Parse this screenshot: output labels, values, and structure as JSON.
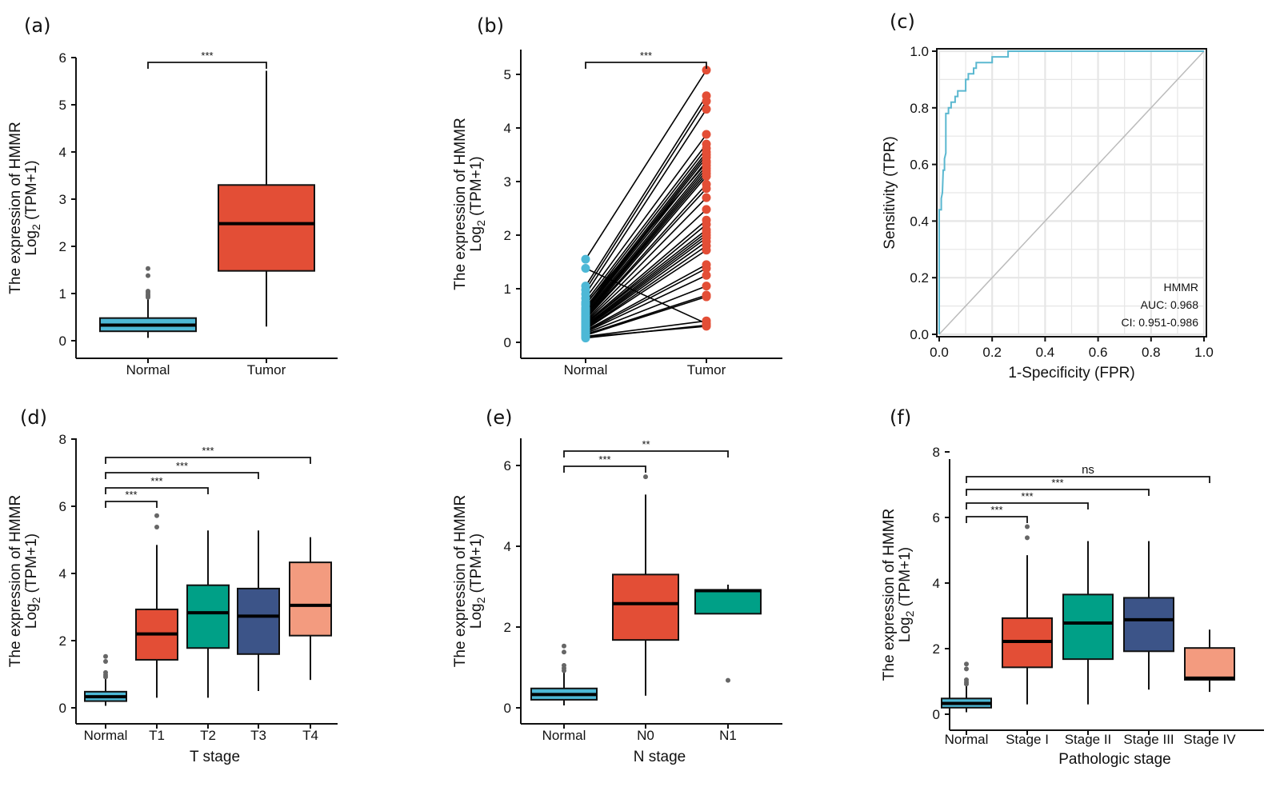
{
  "figure": {
    "gene": "HMMR",
    "colors": {
      "normal": "#4db8d6",
      "tumor": "#e34e36",
      "teal": "#00a087",
      "navy": "#3c5488",
      "salmon": "#f39b7f",
      "outlier": "#666666",
      "roc_line": "#5bb8d0",
      "diagonal": "#bbbbbb",
      "grid": "#e6e6e6"
    }
  },
  "chart_data": [
    {
      "id": "a",
      "panel_label": "(a)",
      "type": "box",
      "ylabel_line1": "The expression of HMMR",
      "ylabel_line2_prefix": "Log",
      "ylabel_line2_sub": "2",
      "ylabel_line2_suffix": " (TPM+1)",
      "xlabel": "",
      "ylim": [
        -0.2,
        6.3
      ],
      "yticks": [
        "0",
        "1",
        "2",
        "3",
        "4",
        "5",
        "6"
      ],
      "categories": [
        "Normal",
        "Tumor"
      ],
      "boxes": [
        {
          "name": "Normal",
          "color": "normal",
          "q1": 0.2,
          "median": 0.33,
          "q3": 0.48,
          "whisker_low": 0.06,
          "whisker_high": 0.9,
          "outliers": [
            0.92,
            0.95,
            0.98,
            1.02,
            1.05,
            1.38,
            1.53
          ]
        },
        {
          "name": "Tumor",
          "color": "tumor",
          "q1": 1.48,
          "median": 2.48,
          "q3": 3.3,
          "whisker_low": 0.3,
          "whisker_high": 5.72,
          "outliers": []
        }
      ],
      "comparisons": [
        {
          "from": "Normal",
          "to": "Tumor",
          "label": "***"
        }
      ]
    },
    {
      "id": "b",
      "panel_label": "(b)",
      "type": "paired-line",
      "ylabel_line1": "The expression of HMMR",
      "ylabel_line2_prefix": "Log",
      "ylabel_line2_sub": "2",
      "ylabel_line2_suffix": " (TPM+1)",
      "xlabel": "",
      "ylim": [
        -0.2,
        5.5
      ],
      "yticks": [
        "0",
        "1",
        "2",
        "3",
        "4",
        "5"
      ],
      "categories": [
        "Normal",
        "Tumor"
      ],
      "pairs": [
        [
          1.55,
          5.08
        ],
        [
          1.38,
          0.35
        ],
        [
          1.05,
          4.6
        ],
        [
          0.98,
          4.5
        ],
        [
          0.9,
          4.35
        ],
        [
          0.82,
          3.88
        ],
        [
          0.75,
          3.7
        ],
        [
          0.7,
          3.62
        ],
        [
          0.65,
          3.55
        ],
        [
          0.6,
          3.45
        ],
        [
          0.58,
          3.38
        ],
        [
          0.55,
          3.3
        ],
        [
          0.52,
          3.25
        ],
        [
          0.5,
          3.2
        ],
        [
          0.48,
          3.15
        ],
        [
          0.45,
          3.1
        ],
        [
          0.43,
          2.87
        ],
        [
          0.4,
          2.7
        ],
        [
          0.38,
          2.48
        ],
        [
          0.36,
          2.28
        ],
        [
          0.34,
          2.2
        ],
        [
          0.32,
          2.05
        ],
        [
          0.3,
          2.0
        ],
        [
          0.28,
          1.95
        ],
        [
          0.27,
          1.88
        ],
        [
          0.25,
          1.8
        ],
        [
          0.24,
          1.72
        ],
        [
          0.22,
          1.45
        ],
        [
          0.2,
          1.38
        ],
        [
          0.19,
          1.25
        ],
        [
          0.17,
          1.05
        ],
        [
          0.15,
          0.88
        ],
        [
          0.13,
          0.85
        ],
        [
          0.11,
          0.4
        ],
        [
          0.1,
          0.3
        ],
        [
          0.08,
          0.32
        ],
        [
          0.62,
          3.5
        ],
        [
          0.72,
          3.35
        ],
        [
          0.44,
          2.95
        ],
        [
          0.35,
          2.1
        ]
      ],
      "comparisons": [
        {
          "from": "Normal",
          "to": "Tumor",
          "label": "***"
        }
      ]
    },
    {
      "id": "c",
      "panel_label": "(c)",
      "type": "line",
      "subtype": "roc",
      "xlabel": "1-Specificity (FPR)",
      "ylabel": "Sensitivity (TPR)",
      "xlim": [
        0,
        1
      ],
      "ylim": [
        0,
        1
      ],
      "xticks": [
        "0.0",
        "0.2",
        "0.4",
        "0.6",
        "0.8",
        "1.0"
      ],
      "yticks": [
        "0.0",
        "0.2",
        "0.4",
        "0.6",
        "0.8",
        "1.0"
      ],
      "grid": true,
      "roc_points": [
        [
          0.0,
          0.0
        ],
        [
          0.0,
          0.44
        ],
        [
          0.008,
          0.44
        ],
        [
          0.008,
          0.48
        ],
        [
          0.012,
          0.5
        ],
        [
          0.015,
          0.58
        ],
        [
          0.02,
          0.58
        ],
        [
          0.02,
          0.62
        ],
        [
          0.025,
          0.64
        ],
        [
          0.025,
          0.78
        ],
        [
          0.035,
          0.78
        ],
        [
          0.035,
          0.8
        ],
        [
          0.045,
          0.8
        ],
        [
          0.045,
          0.82
        ],
        [
          0.06,
          0.82
        ],
        [
          0.06,
          0.84
        ],
        [
          0.07,
          0.84
        ],
        [
          0.07,
          0.86
        ],
        [
          0.1,
          0.86
        ],
        [
          0.1,
          0.9
        ],
        [
          0.11,
          0.9
        ],
        [
          0.11,
          0.92
        ],
        [
          0.13,
          0.92
        ],
        [
          0.13,
          0.94
        ],
        [
          0.14,
          0.94
        ],
        [
          0.14,
          0.96
        ],
        [
          0.2,
          0.96
        ],
        [
          0.2,
          0.98
        ],
        [
          0.26,
          0.98
        ],
        [
          0.26,
          1.0
        ],
        [
          1.0,
          1.0
        ]
      ],
      "annotation": {
        "name": "HMMR",
        "auc": "AUC: 0.968",
        "ci": "CI: 0.951-0.986",
        "placement": "bottom-right"
      }
    },
    {
      "id": "d",
      "panel_label": "(d)",
      "type": "box",
      "ylabel_line1": "The expression of HMMR",
      "ylabel_line2_prefix": "Log",
      "ylabel_line2_sub": "2",
      "ylabel_line2_suffix": " (TPM+1)",
      "xlabel": "T stage",
      "ylim": [
        -0.3,
        8.0
      ],
      "yticks": [
        "0",
        "2",
        "4",
        "6",
        "8"
      ],
      "ytick_values": [
        0,
        2,
        4,
        6,
        8
      ],
      "categories": [
        "Normal",
        "T1",
        "T2",
        "T3",
        "T4"
      ],
      "boxes": [
        {
          "name": "Normal",
          "color": "normal",
          "q1": 0.2,
          "median": 0.33,
          "q3": 0.48,
          "whisker_low": 0.06,
          "whisker_high": 0.9,
          "outliers": [
            0.92,
            0.98,
            1.05,
            1.38,
            1.53
          ]
        },
        {
          "name": "T1",
          "color": "tumor",
          "q1": 1.43,
          "median": 2.2,
          "q3": 2.93,
          "whisker_low": 0.3,
          "whisker_high": 4.85,
          "outliers": [
            5.38,
            5.72
          ]
        },
        {
          "name": "T2",
          "color": "teal",
          "q1": 1.78,
          "median": 2.83,
          "q3": 3.65,
          "whisker_low": 0.3,
          "whisker_high": 5.28,
          "outliers": []
        },
        {
          "name": "T3",
          "color": "navy",
          "q1": 1.6,
          "median": 2.73,
          "q3": 3.55,
          "whisker_low": 0.5,
          "whisker_high": 5.28,
          "outliers": []
        },
        {
          "name": "T4",
          "color": "salmon",
          "q1": 2.15,
          "median": 3.05,
          "q3": 4.33,
          "whisker_low": 0.83,
          "whisker_high": 5.08,
          "outliers": []
        }
      ],
      "comparisons": [
        {
          "from": "Normal",
          "to": "T1",
          "label": "***"
        },
        {
          "from": "Normal",
          "to": "T2",
          "label": "***"
        },
        {
          "from": "Normal",
          "to": "T3",
          "label": "***"
        },
        {
          "from": "Normal",
          "to": "T4",
          "label": "***"
        }
      ]
    },
    {
      "id": "e",
      "panel_label": "(e)",
      "type": "box",
      "ylabel_line1": "The expression of HMMR",
      "ylabel_line2_prefix": "Log",
      "ylabel_line2_sub": "2",
      "ylabel_line2_suffix": " (TPM+1)",
      "xlabel": "N stage",
      "ylim": [
        -0.25,
        6.65
      ],
      "yticks": [
        "0",
        "2",
        "4",
        "6"
      ],
      "ytick_values": [
        0,
        2,
        4,
        6
      ],
      "categories": [
        "Normal",
        "N0",
        "N1"
      ],
      "boxes": [
        {
          "name": "Normal",
          "color": "normal",
          "q1": 0.2,
          "median": 0.33,
          "q3": 0.48,
          "whisker_low": 0.06,
          "whisker_high": 0.9,
          "outliers": [
            0.92,
            0.98,
            1.05,
            1.38,
            1.53
          ]
        },
        {
          "name": "N0",
          "color": "tumor",
          "q1": 1.68,
          "median": 2.58,
          "q3": 3.3,
          "whisker_low": 0.3,
          "whisker_high": 5.28,
          "outliers": [
            5.72
          ]
        },
        {
          "name": "N1",
          "color": "teal",
          "q1": 2.33,
          "median": 2.9,
          "q3": 2.92,
          "whisker_low": 2.33,
          "whisker_high": 3.05,
          "outliers": [
            0.68
          ]
        }
      ],
      "comparisons": [
        {
          "from": "Normal",
          "to": "N0",
          "label": "***"
        },
        {
          "from": "Normal",
          "to": "N1",
          "label": "**"
        }
      ]
    },
    {
      "id": "f",
      "panel_label": "(f)",
      "type": "box",
      "ylabel_line1": "The expression of HMMR",
      "ylabel_line2_prefix": "Log",
      "ylabel_line2_sub": "2",
      "ylabel_line2_suffix": " (TPM+1)",
      "xlabel": "Pathologic stage",
      "ylim": [
        -0.3,
        8.0
      ],
      "yticks": [
        "0",
        "2",
        "4",
        "6",
        "8"
      ],
      "ytick_values": [
        0,
        2,
        4,
        6,
        8
      ],
      "categories": [
        "Normal",
        "Stage I",
        "Stage II",
        "Stage III",
        "Stage IV"
      ],
      "boxes": [
        {
          "name": "Normal",
          "color": "normal",
          "q1": 0.2,
          "median": 0.33,
          "q3": 0.48,
          "whisker_low": 0.06,
          "whisker_high": 0.9,
          "outliers": [
            0.92,
            0.98,
            1.05,
            1.38,
            1.53
          ]
        },
        {
          "name": "Stage I",
          "color": "tumor",
          "q1": 1.43,
          "median": 2.22,
          "q3": 2.93,
          "whisker_low": 0.3,
          "whisker_h": 0,
          "whisker_high": 4.85,
          "outliers": [
            5.38,
            5.72
          ]
        },
        {
          "name": "Stage II",
          "color": "teal",
          "q1": 1.68,
          "median": 2.78,
          "q3": 3.65,
          "whisker_low": 0.3,
          "whisker_high": 5.28,
          "outliers": []
        },
        {
          "name": "Stage III",
          "color": "navy",
          "q1": 1.92,
          "median": 2.88,
          "q3": 3.55,
          "whisker_low": 0.75,
          "whisker_high": 5.28,
          "outliers": []
        },
        {
          "name": "Stage IV",
          "color": "salmon",
          "q1": 1.05,
          "median": 1.1,
          "q3": 2.02,
          "whisker_low": 0.68,
          "whisker_high": 2.58,
          "outliers": []
        }
      ],
      "comparisons": [
        {
          "from": "Normal",
          "to": "Stage I",
          "label": "***"
        },
        {
          "from": "Normal",
          "to": "Stage II",
          "label": "***"
        },
        {
          "from": "Normal",
          "to": "Stage III",
          "label": "***"
        },
        {
          "from": "Normal",
          "to": "Stage IV",
          "label": "ns"
        }
      ]
    }
  ]
}
